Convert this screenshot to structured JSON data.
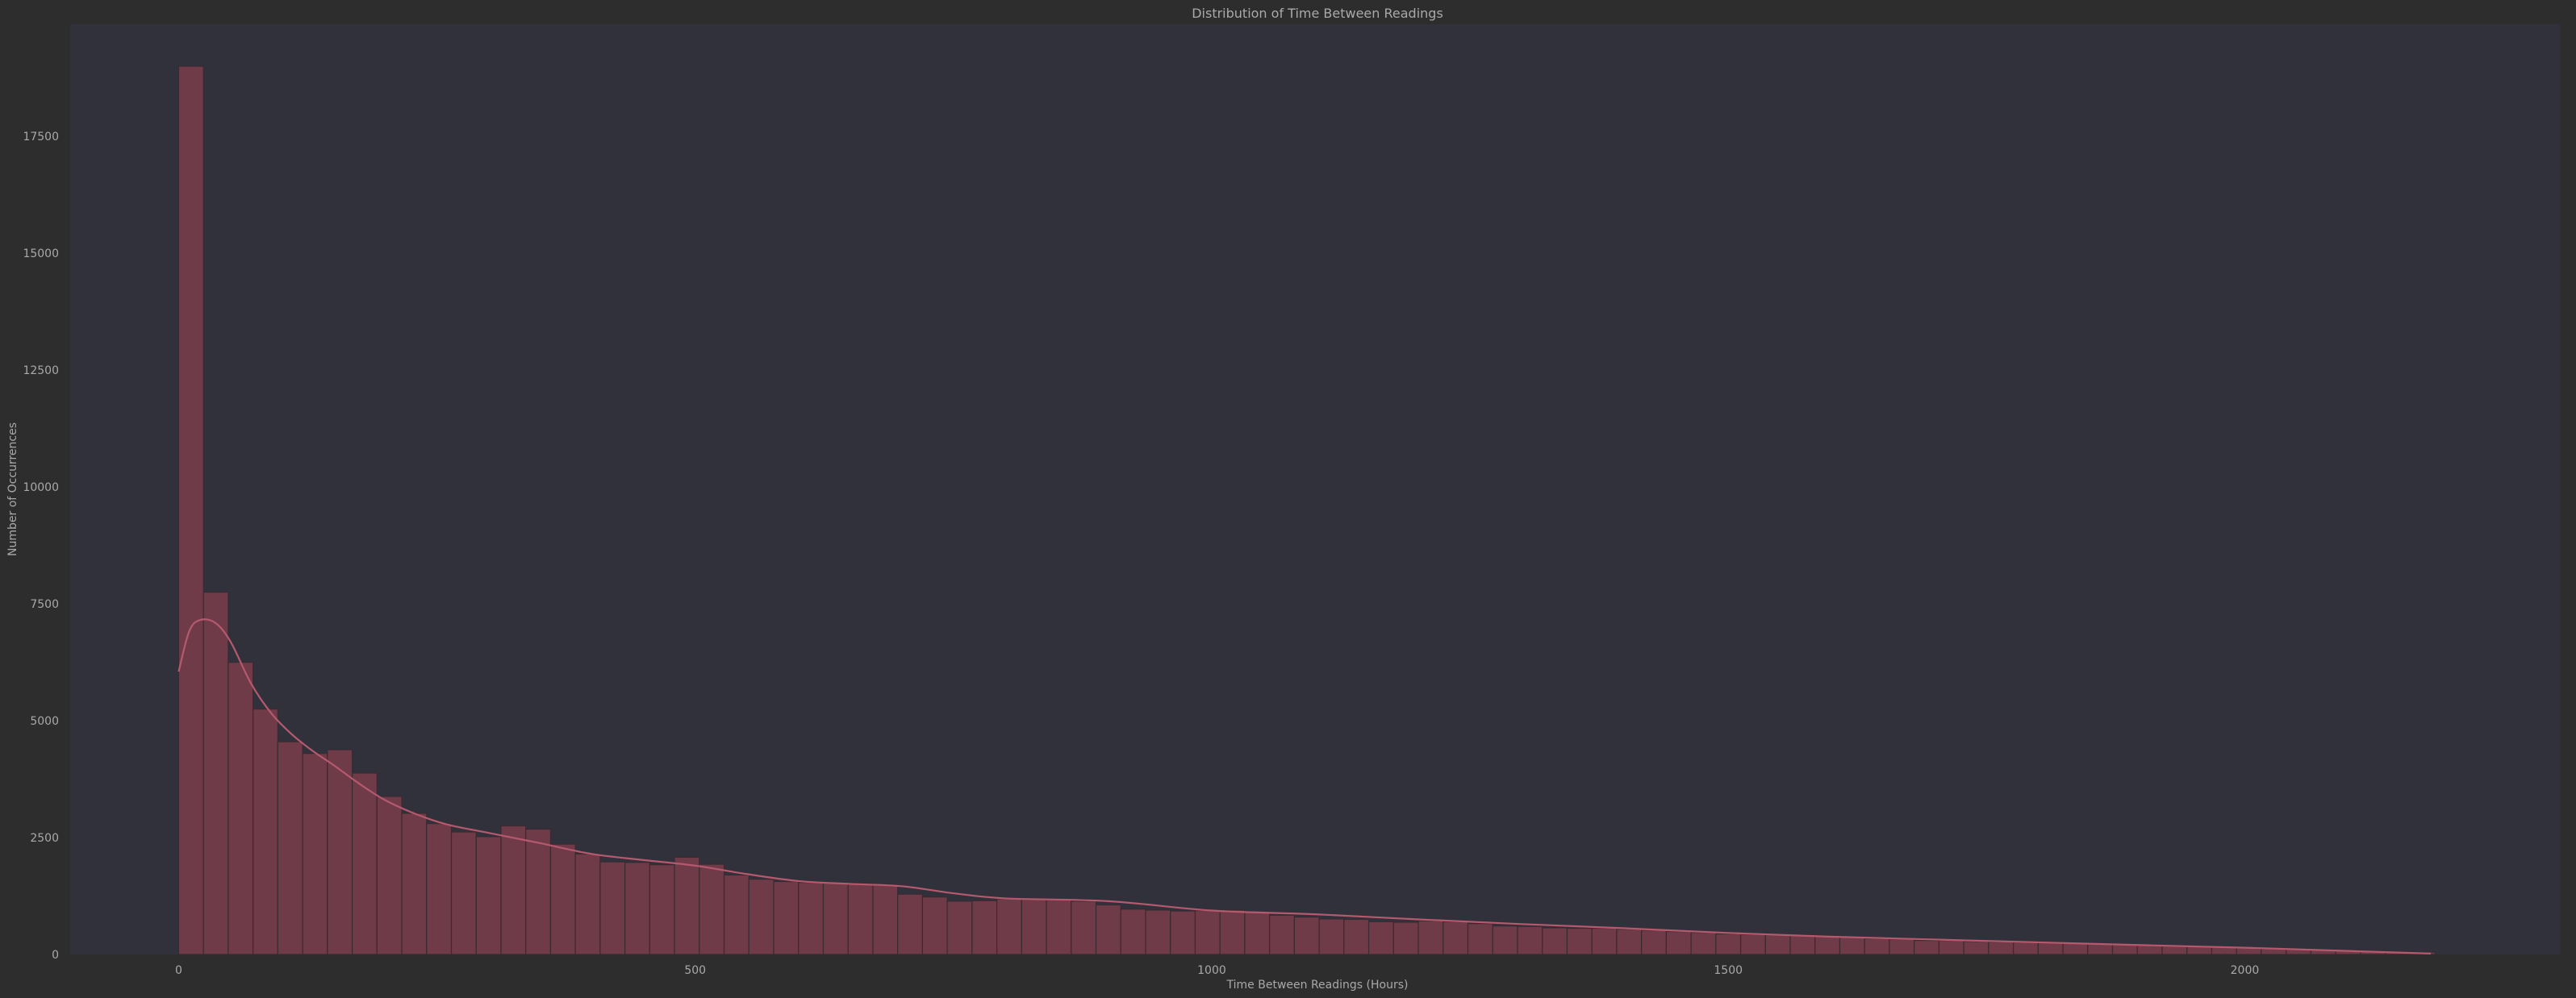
{
  "chart_data": {
    "type": "bar",
    "title": "Distribution of Time Between Readings",
    "xlabel": "Time Between Readings (Hours)",
    "ylabel": "Number of Occurrences",
    "xlim": [
      -105,
      2305
    ],
    "ylim": [
      0,
      19900
    ],
    "xticks": [
      0,
      500,
      1000,
      1500,
      2000
    ],
    "yticks": [
      0,
      2500,
      5000,
      7500,
      10000,
      12500,
      15000,
      17500
    ],
    "grid": false,
    "legend": "none",
    "bin_width": 24,
    "bin_start": 0,
    "counts": [
      19000,
      7750,
      6250,
      5250,
      4550,
      4300,
      4380,
      3880,
      3380,
      3020,
      2800,
      2620,
      2520,
      2750,
      2680,
      2360,
      2150,
      1980,
      1970,
      1920,
      2080,
      1930,
      1700,
      1610,
      1560,
      1540,
      1520,
      1520,
      1500,
      1290,
      1230,
      1140,
      1150,
      1190,
      1180,
      1170,
      1140,
      1060,
      970,
      950,
      930,
      940,
      950,
      900,
      840,
      800,
      760,
      750,
      700,
      690,
      720,
      700,
      660,
      610,
      600,
      570,
      560,
      560,
      540,
      520,
      490,
      470,
      440,
      430,
      420,
      420,
      410,
      370,
      340,
      330,
      300,
      300,
      280,
      270,
      260,
      250,
      240,
      230,
      210,
      200,
      190,
      175,
      160,
      145,
      130,
      120,
      105,
      95,
      80,
      65,
      50
    ],
    "kde": {
      "x": [
        0,
        10,
        20,
        35,
        50,
        70,
        90,
        110,
        130,
        150,
        175,
        200,
        230,
        260,
        300,
        350,
        400,
        450,
        500,
        550,
        600,
        650,
        700,
        750,
        800,
        900,
        1000,
        1100,
        1200,
        1300,
        1400,
        1500,
        1600,
        1700,
        1800,
        1900,
        2000,
        2100,
        2180
      ],
      "y": [
        6050,
        6900,
        7150,
        7100,
        6700,
        5800,
        5150,
        4700,
        4350,
        4050,
        3650,
        3300,
        3000,
        2780,
        2600,
        2380,
        2150,
        2020,
        1900,
        1720,
        1570,
        1510,
        1460,
        1310,
        1200,
        1140,
        940,
        860,
        750,
        650,
        560,
        460,
        380,
        320,
        260,
        200,
        145,
        75,
        20
      ]
    },
    "colors": {
      "background": "#2d2d2d",
      "plot_background": "#31313c",
      "bar_fill": "#6f3b48",
      "bar_edge": "#3a2a31",
      "kde_line": "#b55a6e",
      "text": "#a9a9a9"
    }
  }
}
